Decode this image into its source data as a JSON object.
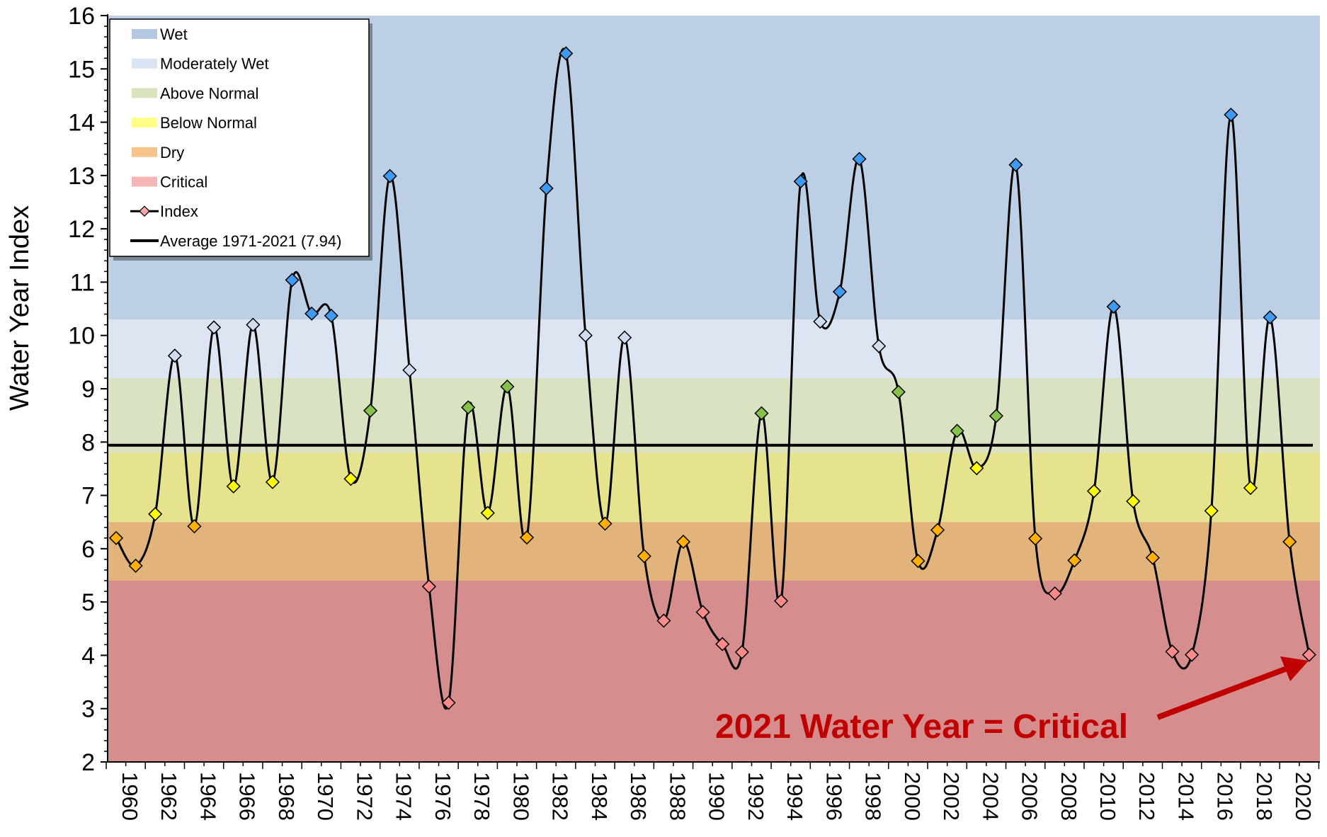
{
  "chart_data": {
    "type": "line",
    "ylabel": "Water Year Index",
    "xlabel": "",
    "ylim": [
      2,
      16
    ],
    "xlim": [
      1960,
      2021
    ],
    "yticks": [
      2,
      3,
      4,
      5,
      6,
      7,
      8,
      9,
      10,
      11,
      12,
      13,
      14,
      15,
      16
    ],
    "xticks": [
      1960,
      1962,
      1964,
      1966,
      1968,
      1970,
      1972,
      1974,
      1976,
      1978,
      1980,
      1982,
      1984,
      1986,
      1988,
      1990,
      1992,
      1994,
      1996,
      1998,
      2000,
      2002,
      2004,
      2006,
      2008,
      2010,
      2012,
      2014,
      2016,
      2018,
      2020
    ],
    "bands": [
      {
        "name": "Wet",
        "from": 10.3,
        "to": 16,
        "color": "#bccfe5",
        "legend_color": "#b4c8e2"
      },
      {
        "name": "Moderately Wet",
        "from": 9.2,
        "to": 10.3,
        "color": "#dce5f1",
        "legend_color": "#dae4f2"
      },
      {
        "name": "Above Normal",
        "from": 7.8,
        "to": 9.2,
        "color": "#d9e3c1",
        "legend_color": "#d6e3bc"
      },
      {
        "name": "Below Normal",
        "from": 6.5,
        "to": 7.8,
        "color": "#e5e38e",
        "legend_color": "#ffff88"
      },
      {
        "name": "Dry",
        "from": 5.4,
        "to": 6.5,
        "color": "#e2b37a",
        "legend_color": "#f6c48a"
      },
      {
        "name": "Critical",
        "from": 2,
        "to": 5.4,
        "color": "#d68d8e",
        "legend_color": "#f7b6b6"
      }
    ],
    "series": [
      {
        "name": "Index",
        "x": [
          1960,
          1961,
          1962,
          1963,
          1964,
          1965,
          1966,
          1967,
          1968,
          1969,
          1970,
          1971,
          1972,
          1973,
          1974,
          1975,
          1976,
          1977,
          1978,
          1979,
          1980,
          1981,
          1982,
          1983,
          1984,
          1985,
          1986,
          1987,
          1988,
          1989,
          1990,
          1991,
          1992,
          1993,
          1994,
          1995,
          1996,
          1997,
          1998,
          1999,
          2000,
          2001,
          2002,
          2003,
          2004,
          2005,
          2006,
          2007,
          2008,
          2009,
          2010,
          2011,
          2012,
          2013,
          2014,
          2015,
          2016,
          2017,
          2018,
          2019,
          2020,
          2021
        ],
        "y": [
          6.2,
          5.68,
          6.65,
          9.62,
          6.42,
          10.15,
          7.17,
          10.2,
          7.25,
          11.04,
          10.41,
          10.37,
          7.31,
          8.59,
          12.99,
          9.35,
          5.29,
          3.11,
          8.65,
          6.67,
          9.04,
          6.21,
          12.76,
          15.29,
          10.0,
          6.47,
          9.96,
          5.86,
          4.65,
          6.13,
          4.81,
          4.21,
          4.06,
          8.54,
          5.02,
          12.89,
          10.26,
          10.82,
          13.31,
          9.8,
          8.94,
          5.77,
          6.35,
          8.21,
          7.51,
          8.49,
          13.2,
          6.19,
          5.16,
          5.78,
          7.08,
          10.54,
          6.89,
          5.83,
          4.07,
          4.01,
          6.71,
          14.14,
          7.14,
          10.34,
          6.13,
          4.01
        ]
      },
      {
        "name": "Average 1971-2021 (7.94)",
        "value": 7.94
      }
    ],
    "marker_colors": {
      "Wet": "#3f9bf2",
      "Moderately Wet": "#d0ddef",
      "Above Normal": "#86c24a",
      "Below Normal": "#ffff00",
      "Dry": "#ffb000",
      "Critical": "#ff8a8a"
    },
    "annotation": "2021 Water Year = Critical",
    "annotation_color": "#c00000",
    "legend_position": "top-left",
    "grid": false
  }
}
